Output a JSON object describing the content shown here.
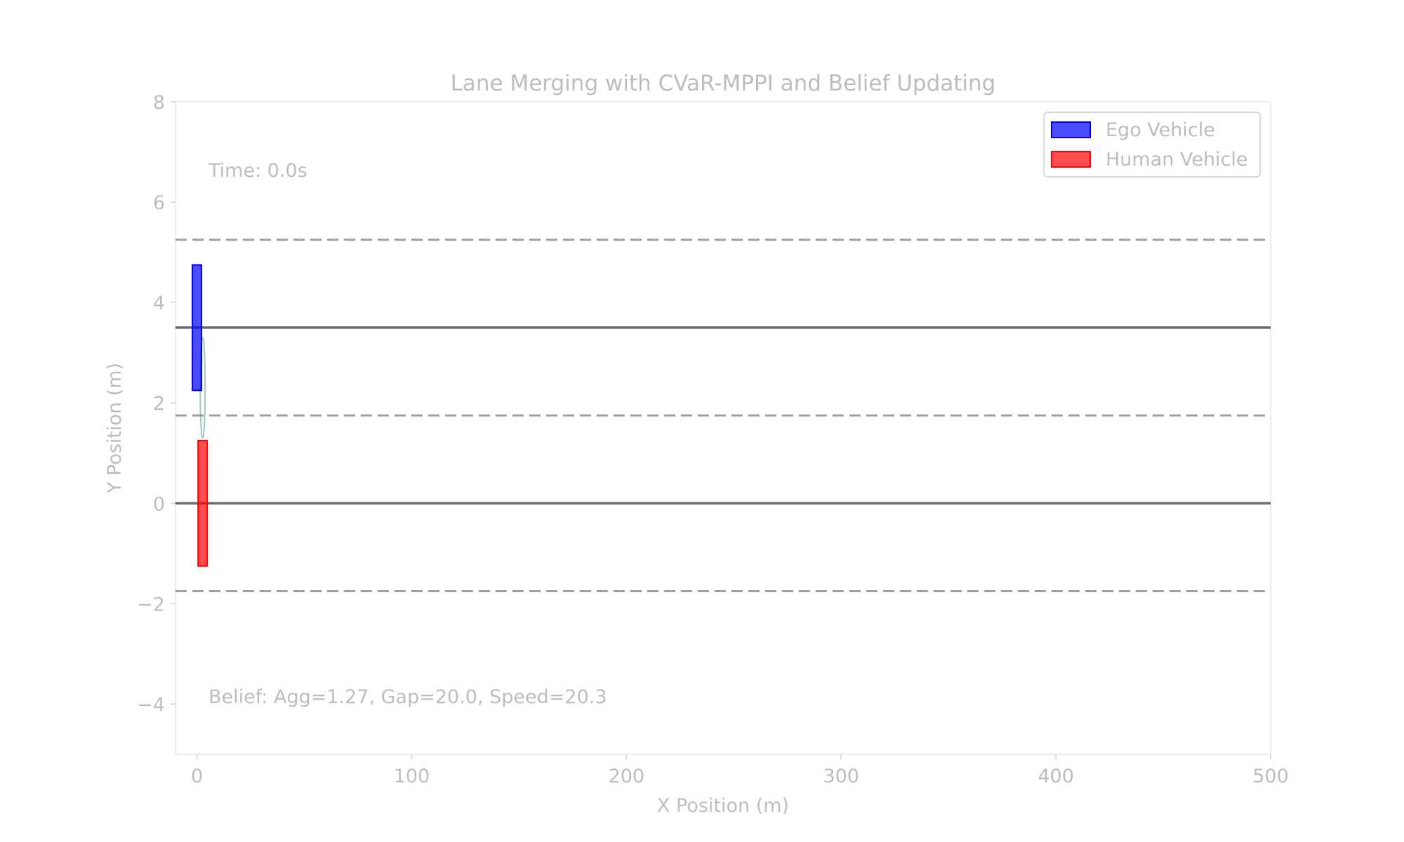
{
  "chart_data": {
    "type": "scatter",
    "title": "Lane Merging with CVaR-MPPI and Belief Updating",
    "xlabel": "X Position (m)",
    "ylabel": "Y Position (m)",
    "xlim": [
      -10,
      500
    ],
    "ylim": [
      -5,
      8
    ],
    "x_ticks": [
      0,
      100,
      200,
      300,
      400,
      500
    ],
    "x_tick_labels": [
      "0",
      "100",
      "200",
      "300",
      "400",
      "500"
    ],
    "y_ticks": [
      -4,
      -2,
      0,
      2,
      4,
      6,
      8
    ],
    "y_tick_labels": [
      "−4",
      "−2",
      "0",
      "2",
      "4",
      "6",
      "8"
    ],
    "grid": false,
    "legend_position": "top-right",
    "lane_lines": [
      {
        "y": 5.25,
        "style": "dashed",
        "color": "#a0a0a0"
      },
      {
        "y": 3.5,
        "style": "solid",
        "color": "#6a6a6a"
      },
      {
        "y": 1.75,
        "style": "dashed",
        "color": "#a0a0a0"
      },
      {
        "y": 0,
        "style": "solid",
        "color": "#6a6a6a"
      },
      {
        "y": -1.75,
        "style": "dashed",
        "color": "#a0a0a0"
      }
    ],
    "vehicles": [
      {
        "name": "Ego Vehicle",
        "x": 0,
        "y": 3.5,
        "length": 4.5,
        "width": 1.8,
        "color": "#0000ff"
      },
      {
        "name": "Human Vehicle",
        "x": 2,
        "y": 0,
        "length": 4.5,
        "width": 1.8,
        "color": "#ff0000"
      }
    ],
    "uncertainty_ellipse": {
      "x": 2,
      "y": 2.3,
      "rx": 1.0,
      "ry": 1.0,
      "color": "#2e8b57"
    },
    "annotations": {
      "time": "Time: 0.0s",
      "belief": "Belief: Agg=1.27, Gap=20.0, Speed=20.3"
    }
  }
}
